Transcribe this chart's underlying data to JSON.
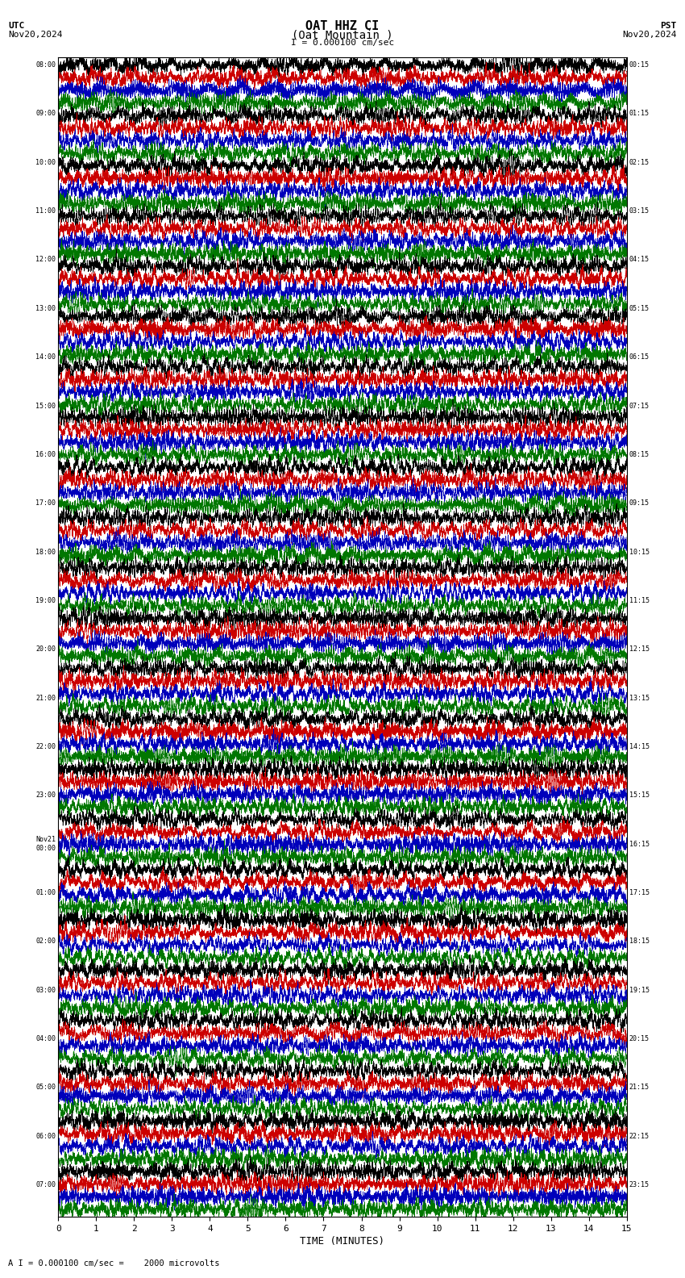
{
  "title_line1": "OAT HHZ CI",
  "title_line2": "(Oat Mountain )",
  "scale_label": "I = 0.000100 cm/sec",
  "bottom_label": "A I = 0.000100 cm/sec =    2000 microvolts",
  "utc_label": "UTC",
  "utc_date": "Nov20,2024",
  "pst_label": "PST",
  "pst_date": "Nov20,2024",
  "xlabel": "TIME (MINUTES)",
  "xmin": 0,
  "xmax": 15,
  "xticks": [
    0,
    1,
    2,
    3,
    4,
    5,
    6,
    7,
    8,
    9,
    10,
    11,
    12,
    13,
    14,
    15
  ],
  "background_color": "#ffffff",
  "trace_colors": [
    "#000000",
    "#cc0000",
    "#0000bb",
    "#007700"
  ],
  "num_traces": 92,
  "utc_times": [
    "08:00",
    "",
    "09:00",
    "",
    "10:00",
    "",
    "11:00",
    "",
    "12:00",
    "",
    "13:00",
    "",
    "14:00",
    "",
    "15:00",
    "",
    "16:00",
    "",
    "17:00",
    "",
    "18:00",
    "",
    "19:00",
    "",
    "20:00",
    "",
    "21:00",
    "",
    "22:00",
    "",
    "23:00",
    "",
    "Nov21\n00:00",
    "",
    "01:00",
    "",
    "02:00",
    "",
    "03:00",
    "",
    "04:00",
    "",
    "05:00",
    "",
    "06:00",
    "",
    "07:00",
    ""
  ],
  "pst_times": [
    "00:15",
    "",
    "01:15",
    "",
    "02:15",
    "",
    "03:15",
    "",
    "04:15",
    "",
    "05:15",
    "",
    "06:15",
    "",
    "07:15",
    "",
    "08:15",
    "",
    "09:15",
    "",
    "10:15",
    "",
    "11:15",
    "",
    "12:15",
    "",
    "13:15",
    "",
    "14:15",
    "",
    "15:15",
    "",
    "16:15",
    "",
    "17:15",
    "",
    "18:15",
    "",
    "19:15",
    "",
    "20:15",
    "",
    "21:15",
    "",
    "22:15",
    "",
    "23:15",
    ""
  ],
  "fig_width": 8.5,
  "fig_height": 15.84,
  "dpi": 100,
  "noise_seed": 42
}
